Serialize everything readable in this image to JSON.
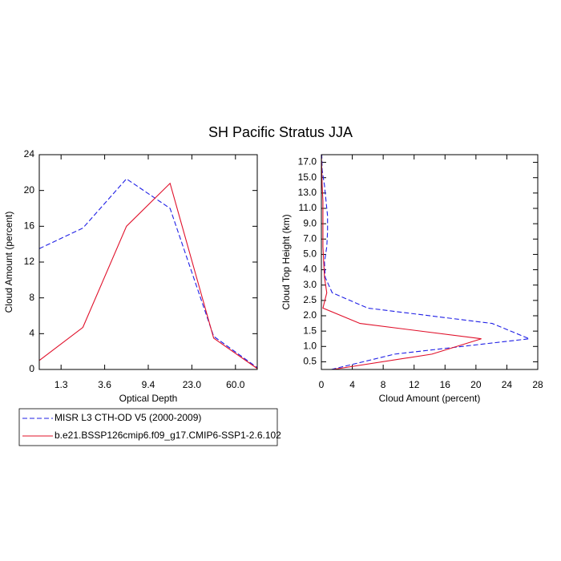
{
  "title": "SH Pacific Stratus JJA",
  "chart_data": [
    {
      "type": "line",
      "xlabel": "Optical Depth",
      "ylabel": "Cloud Amount (percent)",
      "x": [
        0,
        1,
        2,
        3,
        4,
        5
      ],
      "xlim": [
        0,
        5
      ],
      "xticks": [
        {
          "value": 0.5,
          "label": "1.3"
        },
        {
          "value": 1.5,
          "label": "3.6"
        },
        {
          "value": 2.5,
          "label": "9.4"
        },
        {
          "value": 3.5,
          "label": "23.0"
        },
        {
          "value": 4.5,
          "label": "60.0"
        }
      ],
      "ylim": [
        0,
        24
      ],
      "yticks": [
        0,
        4,
        8,
        12,
        16,
        20,
        24
      ],
      "series": [
        {
          "name": "MISR L3 CTH-OD V5 (2000-2009)",
          "color": "#1f1fe6",
          "dashed": true,
          "values": [
            13.5,
            15.8,
            21.3,
            18.0,
            3.7,
            0.2
          ]
        },
        {
          "name": "b.e21.BSSP126cmip6.f09_g17.CMIP6-SSP1-2.6.102",
          "color": "#e0102a",
          "dashed": false,
          "values": [
            1.0,
            4.7,
            16.0,
            20.8,
            3.5,
            0.1
          ]
        }
      ]
    },
    {
      "type": "hline",
      "xlabel": "Cloud Amount (percent)",
      "ylabel": "Cloud Top Height (km)",
      "y": [
        -0.5,
        0.5,
        1.5,
        2.5,
        3.5,
        4.5,
        5.5,
        6.5,
        7.5,
        8.5,
        9.5,
        10.5,
        11.5,
        12.5,
        13.5
      ],
      "xlim": [
        0,
        28
      ],
      "xticks": [
        0,
        4,
        8,
        12,
        16,
        20,
        24,
        28
      ],
      "ylim": [
        -0.5,
        13.5
      ],
      "yticks": [
        {
          "value": 0,
          "label": "0.5"
        },
        {
          "value": 1,
          "label": "1.0"
        },
        {
          "value": 2,
          "label": "1.5"
        },
        {
          "value": 3,
          "label": "2.0"
        },
        {
          "value": 4,
          "label": "2.5"
        },
        {
          "value": 5,
          "label": "3.0"
        },
        {
          "value": 6,
          "label": "4.0"
        },
        {
          "value": 7,
          "label": "5.0"
        },
        {
          "value": 8,
          "label": "7.0"
        },
        {
          "value": 9,
          "label": "9.0"
        },
        {
          "value": 10,
          "label": "11.0"
        },
        {
          "value": 11,
          "label": "13.0"
        },
        {
          "value": 12,
          "label": "15.0"
        },
        {
          "value": 13,
          "label": "17.0"
        }
      ],
      "series": [
        {
          "color": "#1f1fe6",
          "dashed": true,
          "values": [
            1.3,
            9.5,
            26.9,
            22.1,
            6.0,
            1.4,
            0.5,
            0.4,
            0.7,
            0.8,
            0.8,
            0.6,
            0.4,
            0.1,
            0.05
          ]
        },
        {
          "color": "#e0102a",
          "dashed": false,
          "values": [
            1.5,
            14.3,
            20.7,
            5.0,
            0.2,
            0.7,
            0.4,
            0.3,
            0.2,
            0.2,
            0.2,
            0.2,
            0.1,
            0.05,
            0.0
          ]
        }
      ]
    }
  ]
}
